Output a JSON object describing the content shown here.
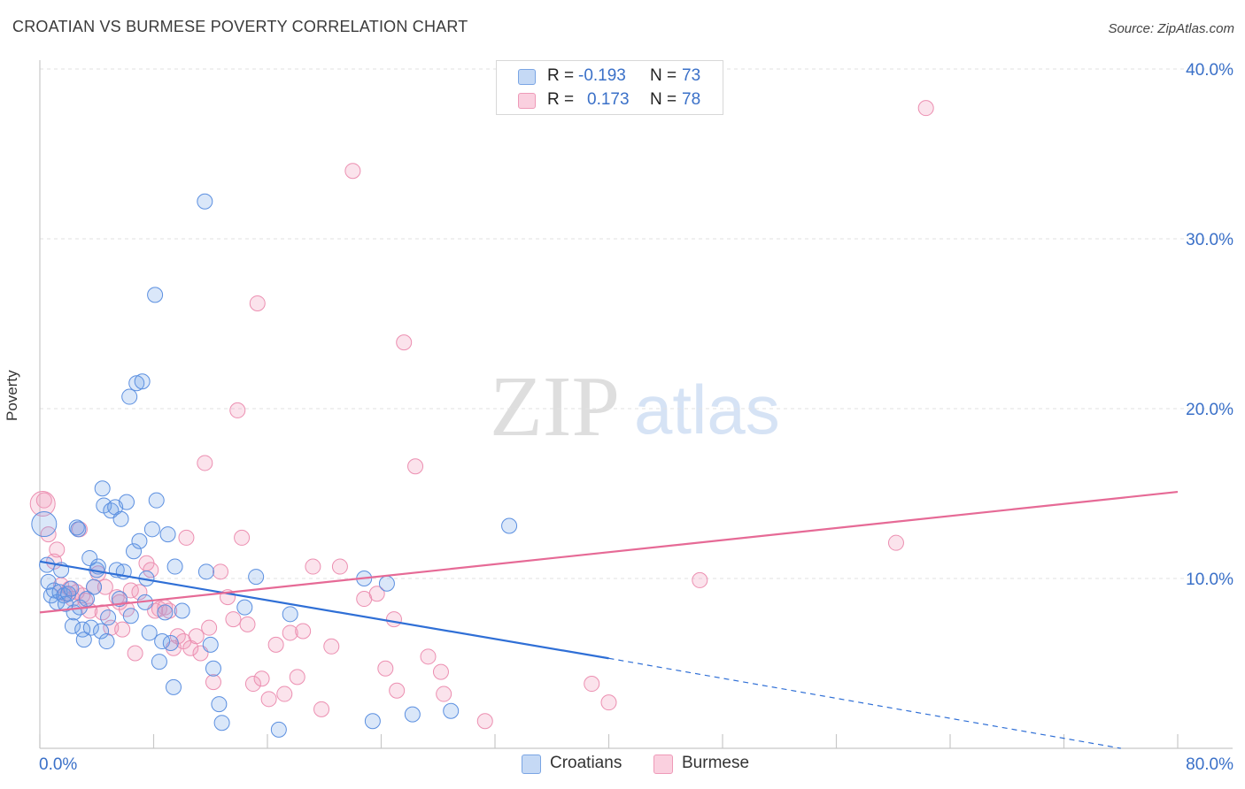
{
  "title": "CROATIAN VS BURMESE POVERTY CORRELATION CHART",
  "source": "Source: ZipAtlas.com",
  "watermark": {
    "zip": "ZIP",
    "atlas": "atlas"
  },
  "colors": {
    "croatians": "#6d9ee6",
    "burmese": "#f29ab9",
    "croatians_line": "#2f6fd6",
    "burmese_line": "#e66a96",
    "axis_text": "#3a70c8"
  },
  "legend": {
    "croatians": {
      "r_label": "R =",
      "r_value": "-0.193",
      "n_label": "N =",
      "n_value": "73"
    },
    "burmese": {
      "r_label": "R =",
      "r_value": "0.173",
      "n_label": "N =",
      "n_value": "78"
    }
  },
  "bottom_legend": {
    "croatians": "Croatians",
    "burmese": "Burmese"
  },
  "chart_data": {
    "type": "scatter",
    "title": "CROATIAN VS BURMESE POVERTY CORRELATION CHART",
    "xlabel": "",
    "ylabel": "Poverty",
    "xlim": [
      0,
      80
    ],
    "ylim": [
      0,
      40
    ],
    "x_tick_labels": [
      "0.0%",
      "80.0%"
    ],
    "y_tick_labels": [
      "10.0%",
      "20.0%",
      "30.0%",
      "40.0%"
    ],
    "y_ticks": [
      10,
      20,
      30,
      40
    ],
    "grid": "horizontal dashed",
    "legend_position": "top-center",
    "series": [
      {
        "name": "Croatians",
        "trend": {
          "x0": 0,
          "y0": 11.0,
          "x1": 40,
          "y1": 5.3,
          "dashed_to_x": 76,
          "dashed_to_y": 0
        },
        "points": [
          [
            0.3,
            13.2
          ],
          [
            0.5,
            10.8
          ],
          [
            0.6,
            9.8
          ],
          [
            0.8,
            9.0
          ],
          [
            1.0,
            9.3
          ],
          [
            1.2,
            8.6
          ],
          [
            1.4,
            9.2
          ],
          [
            1.5,
            10.5
          ],
          [
            1.7,
            9.0
          ],
          [
            1.8,
            8.5
          ],
          [
            2.0,
            9.1
          ],
          [
            2.2,
            9.4
          ],
          [
            2.3,
            7.2
          ],
          [
            2.4,
            8.0
          ],
          [
            2.6,
            13.0
          ],
          [
            2.7,
            12.9
          ],
          [
            2.8,
            8.3
          ],
          [
            3.0,
            7.0
          ],
          [
            3.1,
            6.4
          ],
          [
            3.3,
            8.8
          ],
          [
            3.5,
            11.2
          ],
          [
            3.6,
            7.1
          ],
          [
            3.8,
            9.5
          ],
          [
            4.0,
            10.5
          ],
          [
            4.1,
            10.7
          ],
          [
            4.3,
            6.9
          ],
          [
            4.4,
            15.3
          ],
          [
            4.5,
            14.3
          ],
          [
            4.7,
            6.3
          ],
          [
            4.8,
            7.7
          ],
          [
            5.0,
            14.0
          ],
          [
            5.3,
            14.2
          ],
          [
            5.4,
            10.5
          ],
          [
            5.6,
            8.8
          ],
          [
            5.7,
            13.5
          ],
          [
            5.9,
            10.4
          ],
          [
            6.1,
            14.5
          ],
          [
            6.3,
            20.7
          ],
          [
            6.4,
            7.8
          ],
          [
            6.6,
            11.6
          ],
          [
            6.8,
            21.5
          ],
          [
            7.0,
            12.2
          ],
          [
            7.2,
            21.6
          ],
          [
            7.4,
            8.6
          ],
          [
            7.5,
            10.0
          ],
          [
            7.7,
            6.8
          ],
          [
            7.9,
            12.9
          ],
          [
            8.1,
            26.7
          ],
          [
            8.2,
            14.6
          ],
          [
            8.4,
            5.1
          ],
          [
            8.6,
            6.3
          ],
          [
            8.8,
            8.0
          ],
          [
            9.0,
            12.6
          ],
          [
            9.2,
            6.2
          ],
          [
            9.4,
            3.6
          ],
          [
            9.5,
            10.7
          ],
          [
            10.0,
            8.1
          ],
          [
            11.6,
            32.2
          ],
          [
            11.7,
            10.4
          ],
          [
            12.0,
            6.1
          ],
          [
            12.2,
            4.7
          ],
          [
            12.6,
            2.6
          ],
          [
            12.8,
            1.5
          ],
          [
            14.4,
            8.3
          ],
          [
            15.2,
            10.1
          ],
          [
            16.8,
            1.1
          ],
          [
            17.6,
            7.9
          ],
          [
            22.8,
            10.0
          ],
          [
            23.4,
            1.6
          ],
          [
            24.4,
            9.7
          ],
          [
            26.2,
            2.0
          ],
          [
            28.9,
            2.2
          ],
          [
            33.0,
            13.1
          ]
        ]
      },
      {
        "name": "Burmese",
        "trend": {
          "x0": 0,
          "y0": 8.0,
          "x1": 80,
          "y1": 15.1
        },
        "points": [
          [
            0.3,
            14.6
          ],
          [
            0.6,
            12.6
          ],
          [
            1.0,
            11.0
          ],
          [
            1.2,
            11.7
          ],
          [
            1.5,
            9.6
          ],
          [
            1.8,
            9.1
          ],
          [
            2.1,
            9.4
          ],
          [
            2.3,
            8.8
          ],
          [
            2.6,
            9.2
          ],
          [
            2.8,
            12.9
          ],
          [
            3.0,
            9.0
          ],
          [
            3.2,
            8.7
          ],
          [
            3.5,
            8.1
          ],
          [
            3.8,
            9.5
          ],
          [
            4.1,
            10.3
          ],
          [
            4.4,
            8.0
          ],
          [
            4.6,
            9.5
          ],
          [
            5.0,
            7.1
          ],
          [
            5.4,
            8.9
          ],
          [
            5.6,
            8.6
          ],
          [
            5.8,
            7.0
          ],
          [
            6.1,
            8.2
          ],
          [
            6.4,
            9.3
          ],
          [
            6.7,
            5.6
          ],
          [
            7.0,
            9.2
          ],
          [
            7.5,
            10.9
          ],
          [
            7.8,
            10.5
          ],
          [
            8.1,
            8.1
          ],
          [
            8.4,
            8.2
          ],
          [
            8.8,
            8.3
          ],
          [
            9.1,
            8.1
          ],
          [
            9.4,
            5.9
          ],
          [
            9.7,
            6.6
          ],
          [
            10.1,
            6.3
          ],
          [
            10.3,
            12.4
          ],
          [
            10.6,
            5.9
          ],
          [
            11.0,
            6.6
          ],
          [
            11.3,
            5.6
          ],
          [
            11.6,
            16.8
          ],
          [
            11.9,
            7.1
          ],
          [
            12.2,
            3.9
          ],
          [
            12.7,
            10.4
          ],
          [
            13.2,
            8.9
          ],
          [
            13.6,
            7.6
          ],
          [
            13.9,
            19.9
          ],
          [
            14.2,
            12.4
          ],
          [
            14.6,
            7.3
          ],
          [
            15.0,
            3.8
          ],
          [
            15.3,
            26.2
          ],
          [
            15.6,
            4.1
          ],
          [
            16.1,
            2.9
          ],
          [
            16.6,
            6.1
          ],
          [
            17.2,
            3.2
          ],
          [
            17.6,
            6.8
          ],
          [
            18.1,
            4.2
          ],
          [
            18.5,
            6.9
          ],
          [
            19.2,
            10.7
          ],
          [
            19.8,
            2.3
          ],
          [
            20.5,
            6.0
          ],
          [
            21.1,
            10.7
          ],
          [
            22.0,
            34.0
          ],
          [
            22.8,
            8.8
          ],
          [
            23.7,
            9.1
          ],
          [
            24.3,
            4.7
          ],
          [
            24.9,
            7.6
          ],
          [
            25.1,
            3.4
          ],
          [
            25.6,
            23.9
          ],
          [
            26.4,
            16.6
          ],
          [
            27.3,
            5.4
          ],
          [
            28.2,
            4.5
          ],
          [
            28.4,
            3.2
          ],
          [
            31.3,
            1.6
          ],
          [
            38.8,
            3.8
          ],
          [
            40.0,
            2.7
          ],
          [
            46.4,
            9.9
          ],
          [
            60.2,
            12.1
          ],
          [
            62.3,
            37.7
          ],
          [
            0.2,
            14.4
          ]
        ]
      }
    ]
  }
}
